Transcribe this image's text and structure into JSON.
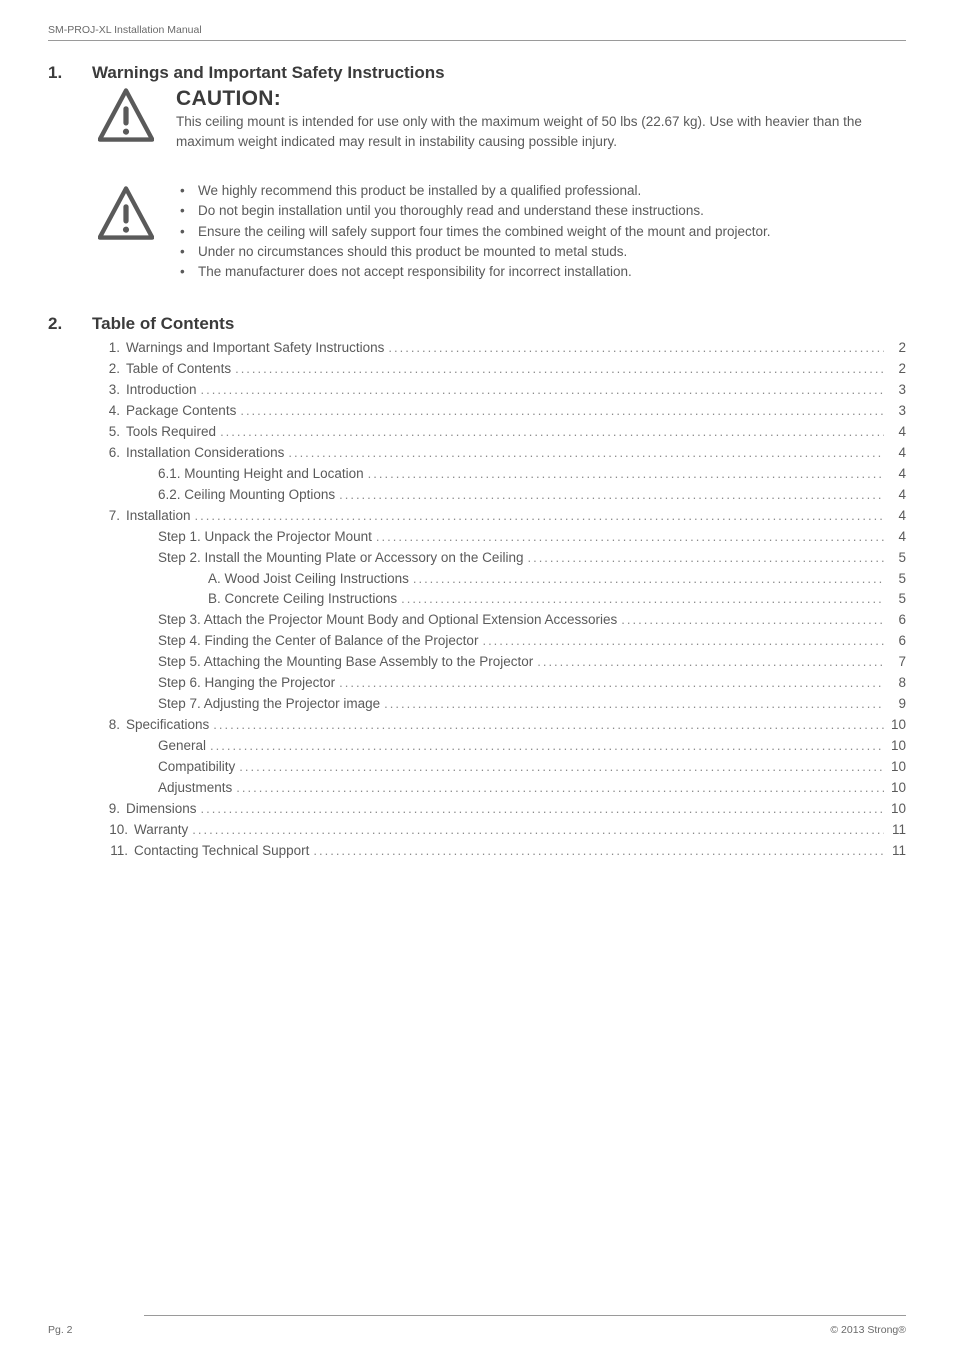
{
  "colors": {
    "text_primary": "#3b3b3b",
    "text_body": "#5a5a5a",
    "text_muted": "#6a6a6a",
    "rule": "#9a9a9a",
    "leader": "#8a8a8a",
    "background": "#ffffff",
    "icon_stroke": "#5a5a5a"
  },
  "typography": {
    "body_pt": 13.5,
    "heading_pt": 17,
    "caution_title_pt": 21,
    "footer_pt": 10.5,
    "family": "Arial"
  },
  "header": {
    "doc_title": "SM-PROJ-XL Installation Manual"
  },
  "section1": {
    "number": "1.",
    "title": "Warnings and Important Safety Instructions",
    "caution_heading": "CAUTION:",
    "caution_body": "This ceiling mount is intended for use only with the maximum weight of 50 lbs (22.67 kg).  Use with heavier than the maximum weight indicated may result in instability causing possible injury.",
    "bullets": [
      "We highly recommend this product be installed by a qualified professional.",
      "Do not begin installation until you thoroughly read and understand these instructions.",
      "Ensure the ceiling will safely support four times the combined weight of the mount and projector.",
      "Under no circumstances should this product be mounted to metal studs.",
      "The manufacturer does not accept responsibility for incorrect installation."
    ]
  },
  "section2": {
    "number": "2.",
    "title": "Table of Contents",
    "entries": [
      {
        "num": "1.",
        "indent": 0,
        "label": "Warnings and Important Safety Instructions",
        "page": "2"
      },
      {
        "num": "2.",
        "indent": 0,
        "label": "Table of Contents",
        "page": "2"
      },
      {
        "num": "3.",
        "indent": 0,
        "label": "Introduction",
        "page": "3"
      },
      {
        "num": "4.",
        "indent": 0,
        "label": "Package Contents",
        "page": "3"
      },
      {
        "num": "5.",
        "indent": 0,
        "label": "Tools Required",
        "page": "4"
      },
      {
        "num": "6.",
        "indent": 0,
        "label": "Installation Considerations",
        "page": "4"
      },
      {
        "num": "",
        "indent": 1,
        "label": "6.1.  Mounting Height and Location",
        "page": "4"
      },
      {
        "num": "",
        "indent": 1,
        "label": "6.2.  Ceiling Mounting Options",
        "page": "4"
      },
      {
        "num": "7.",
        "indent": 0,
        "label": "Installation",
        "page": "4"
      },
      {
        "num": "",
        "indent": 1,
        "label": "Step 1.  Unpack the Projector Mount",
        "page": "4"
      },
      {
        "num": "",
        "indent": 1,
        "label": "Step 2.  Install the Mounting Plate or Accessory on the Ceiling",
        "page": "5"
      },
      {
        "num": "",
        "indent": 2,
        "label": "A. Wood Joist Ceiling Instructions",
        "page": "5"
      },
      {
        "num": "",
        "indent": 2,
        "label": "B. Concrete Ceiling Instructions",
        "page": "5"
      },
      {
        "num": "",
        "indent": 1,
        "label": "Step 3.  Attach the Projector Mount Body and Optional Extension Accessories",
        "page": "6"
      },
      {
        "num": "",
        "indent": 1,
        "label": "Step 4.  Finding the Center of Balance of the Projector",
        "page": "6"
      },
      {
        "num": "",
        "indent": 1,
        "label": "Step 5.  Attaching the Mounting Base Assembly to the Projector",
        "page": "7"
      },
      {
        "num": "",
        "indent": 1,
        "label": "Step 6.  Hanging the Projector",
        "page": "8"
      },
      {
        "num": "",
        "indent": 1,
        "label": "Step 7.  Adjusting the Projector image",
        "page": "9"
      },
      {
        "num": "8.",
        "indent": 0,
        "label": "Specifications",
        "page": "10"
      },
      {
        "num": "",
        "indent": 1,
        "label": "General",
        "page": "10"
      },
      {
        "num": "",
        "indent": 1,
        "label": "Compatibility",
        "page": "10"
      },
      {
        "num": "",
        "indent": 1,
        "label": "Adjustments",
        "page": "10"
      },
      {
        "num": "9.",
        "indent": 0,
        "label": "Dimensions",
        "page": "10"
      },
      {
        "num": "10.",
        "indent": 0,
        "label": "Warranty",
        "page": "11"
      },
      {
        "num": "11.",
        "indent": 0,
        "label": "Contacting Technical Support",
        "page": "11"
      }
    ]
  },
  "footer": {
    "page_label": "Pg. 2",
    "copyright": "© 2013 Strong®"
  }
}
